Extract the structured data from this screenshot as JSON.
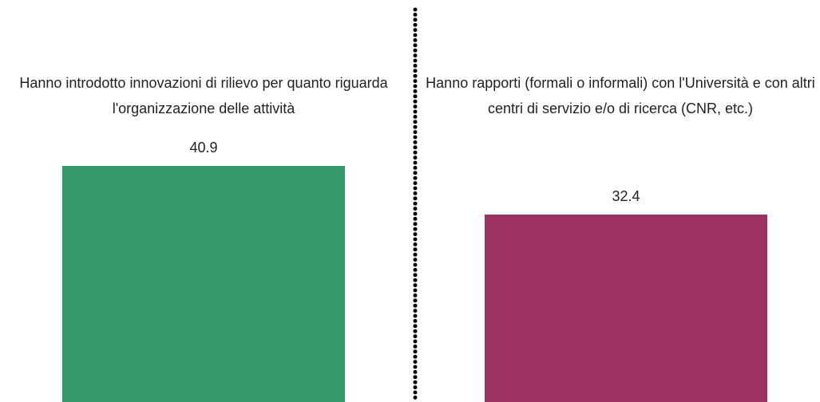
{
  "chart_data": {
    "type": "bar",
    "categories": [
      "Hanno introdotto innovazioni di rilievo per quanto riguarda l'organizzazione delle attività",
      "Hanno rapporti (formali o informali) con l'Università e con altri centri di servizio e/o di ricerca (CNR, etc.)"
    ],
    "values": [
      40.9,
      32.4
    ],
    "colors": [
      "#359a69",
      "#9b3463"
    ]
  }
}
